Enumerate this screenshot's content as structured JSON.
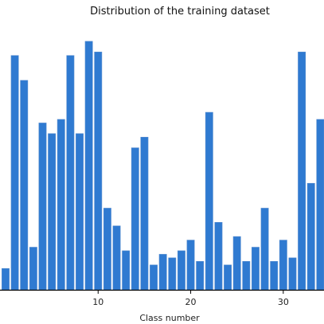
{
  "chart_data": {
    "type": "bar",
    "title": "Distribution of the training dataset",
    "xlabel": "Class number",
    "ylabel": "",
    "x_ticks": [
      10,
      20,
      30
    ],
    "xlim": [
      -0.6,
      34.4
    ],
    "ylim": [
      0,
      2180
    ],
    "grid": false,
    "legend": false,
    "bar_color": "#2f7ad1",
    "categories": [
      0,
      1,
      2,
      3,
      4,
      5,
      6,
      7,
      8,
      9,
      10,
      11,
      12,
      13,
      14,
      15,
      16,
      17,
      18,
      19,
      20,
      21,
      22,
      23,
      24,
      25,
      26,
      27,
      28,
      29,
      30,
      31,
      32,
      33,
      34
    ],
    "values": [
      180,
      1980,
      1770,
      360,
      1410,
      1320,
      1440,
      1980,
      1320,
      2100,
      2010,
      690,
      540,
      330,
      1200,
      1290,
      210,
      300,
      270,
      330,
      420,
      240,
      1500,
      570,
      210,
      450,
      240,
      360,
      690,
      240,
      420,
      270,
      2010,
      900,
      1440
    ]
  }
}
